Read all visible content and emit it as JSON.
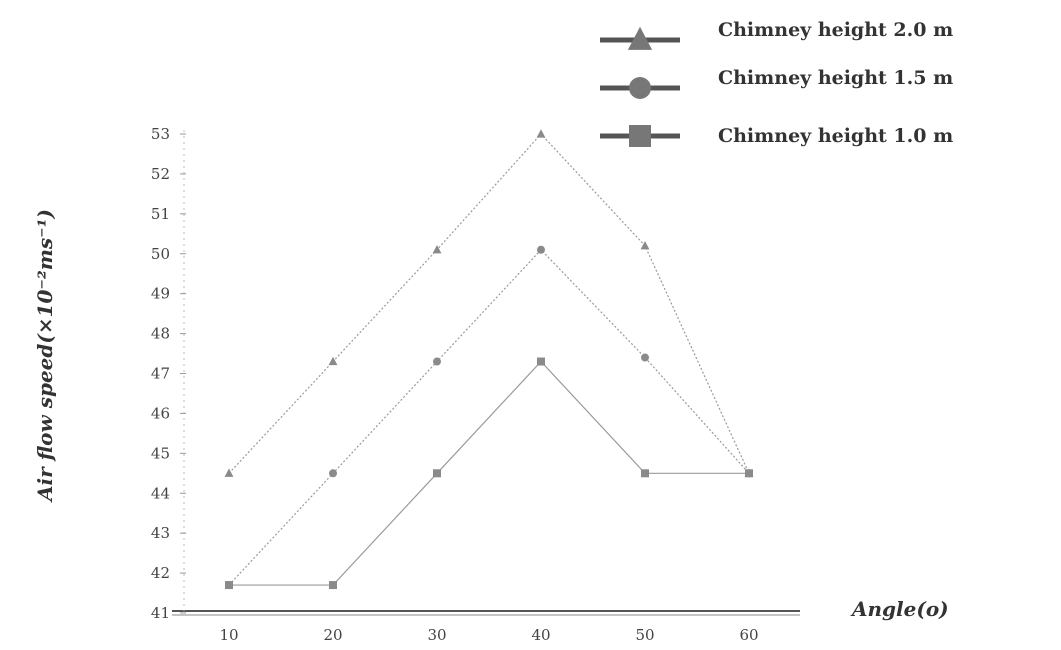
{
  "chart_data": {
    "type": "line",
    "x": [
      10,
      20,
      30,
      40,
      50,
      60
    ],
    "xlabel": "Angle(o)",
    "ylabel": "Air flow speed(×10⁻²ms⁻¹)",
    "ylim": [
      41,
      53
    ],
    "yticks": [
      41,
      42,
      43,
      44,
      45,
      46,
      47,
      48,
      49,
      50,
      51,
      52,
      53
    ],
    "ytick_labels": [
      "41",
      "42",
      "43",
      "44",
      "45",
      "46",
      "47",
      "48",
      "49",
      "50",
      "51",
      "52",
      "53"
    ],
    "xtick_labels": [
      "10",
      "20",
      "30",
      "40",
      "50",
      "60"
    ],
    "grid": false,
    "legend_position": "top-right",
    "series": [
      {
        "name": "Chimney height 2.0 m",
        "marker": "triangle",
        "color": "#8a8a8a",
        "values": [
          44.5,
          47.3,
          50.1,
          53.0,
          50.2,
          44.5
        ]
      },
      {
        "name": "Chimney height 1.5 m",
        "marker": "circle",
        "color": "#8a8a8a",
        "values": [
          41.7,
          44.5,
          47.3,
          50.1,
          47.4,
          44.5
        ]
      },
      {
        "name": "Chimney height 1.0 m",
        "marker": "square",
        "color": "#8a8a8a",
        "values": [
          41.7,
          41.7,
          44.5,
          47.3,
          44.5,
          44.5
        ]
      }
    ]
  }
}
